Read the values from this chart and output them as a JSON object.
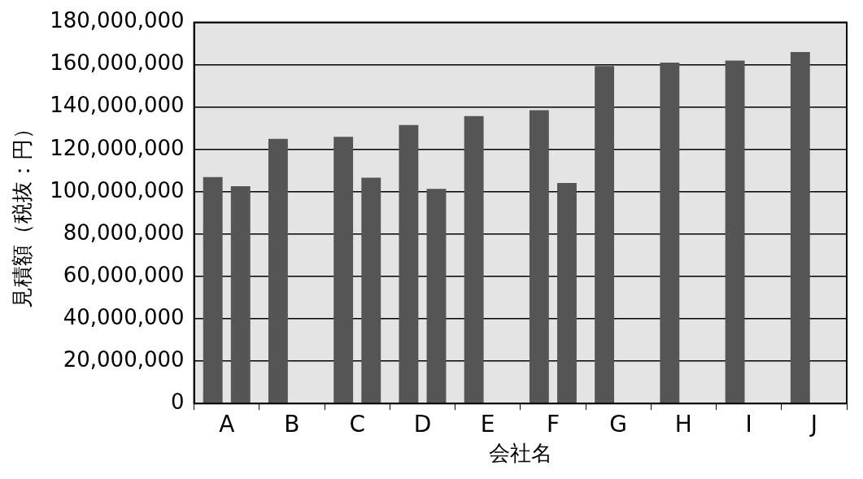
{
  "chart_data": {
    "type": "bar",
    "xlabel": "会社名",
    "ylabel": "見積額（税抜：円）",
    "categories": [
      "A",
      "B",
      "C",
      "D",
      "E",
      "F",
      "G",
      "H",
      "I",
      "J"
    ],
    "series": [
      {
        "color": "#555555",
        "values": [
          107000000,
          125000000,
          126000000,
          131500000,
          135800000,
          138600000,
          159400000,
          161000000,
          162000000,
          166000000
        ]
      },
      {
        "color": "#555555",
        "values": [
          102600000,
          null,
          106700000,
          101400000,
          null,
          104200000,
          null,
          null,
          null,
          null
        ]
      }
    ],
    "ylim": [
      0,
      180000000
    ],
    "yticks": [
      0,
      {
        "value": 20000000,
        "label": "20,000,000"
      },
      {
        "value": 40000000,
        "label": "40,000,000"
      },
      {
        "value": 60000000,
        "label": "60,000,000"
      },
      {
        "value": 80000000,
        "label": "80,000,000"
      },
      {
        "value": 100000000,
        "label": "100,000,000"
      },
      {
        "value": 120000000,
        "label": "120,000,000"
      },
      {
        "value": 140000000,
        "label": "140,000,000"
      },
      {
        "value": 160000000,
        "label": "160,000,000"
      },
      {
        "value": 180000000,
        "label": "180,000,000"
      }
    ],
    "grid": "y",
    "legend": false
  }
}
